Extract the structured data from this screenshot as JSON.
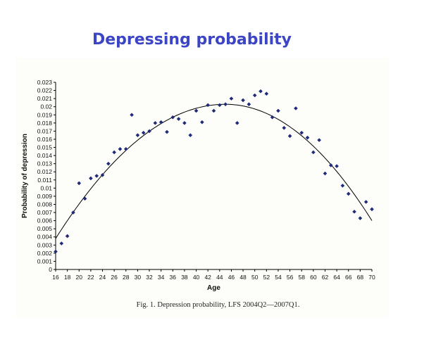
{
  "slide": {
    "title": "Depressing probability",
    "title_color": "#3c45c4",
    "caption": "Fig. 1. Depression probability, LFS 2004Q2—2007Q1."
  },
  "chart_data": {
    "type": "scatter",
    "title": "",
    "xlabel": "Age",
    "ylabel": "Probability of depression",
    "xlim": [
      16,
      70
    ],
    "ylim": [
      0,
      0.023
    ],
    "x_ticks": [
      "16",
      "18",
      "20",
      "22",
      "24",
      "26",
      "28",
      "30",
      "32",
      "34",
      "36",
      "38",
      "40",
      "42",
      "44",
      "46",
      "48",
      "50",
      "52",
      "54",
      "56",
      "58",
      "60",
      "62",
      "64",
      "66",
      "68",
      "70"
    ],
    "y_ticks": [
      "0",
      "0.001",
      "0.002",
      "0.003",
      "0.004",
      "0.005",
      "0.006",
      "0.007",
      "0.008",
      "0.009",
      "0.01",
      "0.011",
      "0.012",
      "0.013",
      "0.014",
      "0.015",
      "0.016",
      "0.017",
      "0.018",
      "0.019",
      "0.02",
      "0.021",
      "0.022",
      "0.023"
    ],
    "grid": false,
    "marker_color": "#1f2a78",
    "curve_color": "#000000",
    "points": [
      {
        "x": 16,
        "y": 0.0022
      },
      {
        "x": 17,
        "y": 0.0032
      },
      {
        "x": 18,
        "y": 0.0041
      },
      {
        "x": 19,
        "y": 0.007
      },
      {
        "x": 20,
        "y": 0.0106
      },
      {
        "x": 21,
        "y": 0.0087
      },
      {
        "x": 22,
        "y": 0.0112
      },
      {
        "x": 23,
        "y": 0.0115
      },
      {
        "x": 24,
        "y": 0.0116
      },
      {
        "x": 25,
        "y": 0.013
      },
      {
        "x": 26,
        "y": 0.0144
      },
      {
        "x": 27,
        "y": 0.0148
      },
      {
        "x": 28,
        "y": 0.0148
      },
      {
        "x": 29,
        "y": 0.019
      },
      {
        "x": 30,
        "y": 0.0165
      },
      {
        "x": 31,
        "y": 0.0168
      },
      {
        "x": 32,
        "y": 0.017
      },
      {
        "x": 33,
        "y": 0.018
      },
      {
        "x": 34,
        "y": 0.0181
      },
      {
        "x": 35,
        "y": 0.0169
      },
      {
        "x": 36,
        "y": 0.0187
      },
      {
        "x": 37,
        "y": 0.0185
      },
      {
        "x": 38,
        "y": 0.018
      },
      {
        "x": 39,
        "y": 0.0165
      },
      {
        "x": 40,
        "y": 0.0195
      },
      {
        "x": 41,
        "y": 0.0181
      },
      {
        "x": 42,
        "y": 0.0202
      },
      {
        "x": 43,
        "y": 0.0195
      },
      {
        "x": 44,
        "y": 0.0202
      },
      {
        "x": 45,
        "y": 0.0203
      },
      {
        "x": 46,
        "y": 0.021
      },
      {
        "x": 47,
        "y": 0.018
      },
      {
        "x": 48,
        "y": 0.0208
      },
      {
        "x": 49,
        "y": 0.0203
      },
      {
        "x": 50,
        "y": 0.0214
      },
      {
        "x": 51,
        "y": 0.0219
      },
      {
        "x": 52,
        "y": 0.0216
      },
      {
        "x": 53,
        "y": 0.0187
      },
      {
        "x": 54,
        "y": 0.0195
      },
      {
        "x": 55,
        "y": 0.0174
      },
      {
        "x": 56,
        "y": 0.0164
      },
      {
        "x": 57,
        "y": 0.0198
      },
      {
        "x": 58,
        "y": 0.0168
      },
      {
        "x": 59,
        "y": 0.0162
      },
      {
        "x": 60,
        "y": 0.0144
      },
      {
        "x": 61,
        "y": 0.0159
      },
      {
        "x": 62,
        "y": 0.0118
      },
      {
        "x": 63,
        "y": 0.0128
      },
      {
        "x": 64,
        "y": 0.0127
      },
      {
        "x": 65,
        "y": 0.0103
      },
      {
        "x": 66,
        "y": 0.0093
      },
      {
        "x": 67,
        "y": 0.0071
      },
      {
        "x": 68,
        "y": 0.0063
      },
      {
        "x": 69,
        "y": 0.0083
      },
      {
        "x": 70,
        "y": 0.0074
      }
    ],
    "fitted_curve": {
      "type": "quadratic",
      "peak_x": 45,
      "peak_y": 0.0203,
      "y_at_x16": 0.0038,
      "y_at_x70": 0.006
    }
  }
}
